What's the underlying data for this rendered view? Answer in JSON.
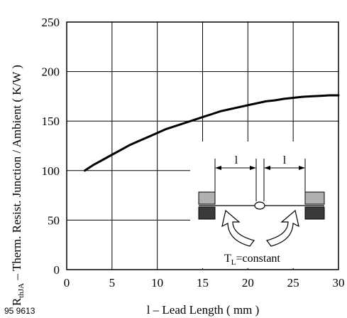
{
  "figure_id": "95 9613",
  "chart_data": {
    "type": "line",
    "title": "",
    "xlabel": "l – Lead Length ( mm )",
    "ylabel_main": "R",
    "ylabel_sub": "thJA",
    "ylabel_rest": " – Therm. Resist. Junction / Ambient ( K/W )",
    "xlim": [
      0,
      30
    ],
    "ylim": [
      0,
      250
    ],
    "x_ticks": [
      "0",
      "5",
      "10",
      "15",
      "20",
      "25",
      "30"
    ],
    "y_ticks": [
      "0",
      "50",
      "100",
      "150",
      "200",
      "250"
    ],
    "grid": true,
    "legend": "none",
    "series": [
      {
        "x": [
          2,
          3,
          4,
          5,
          6,
          7,
          8,
          9,
          10,
          11,
          12,
          13,
          14,
          15,
          16,
          17,
          18,
          19,
          20,
          21,
          22,
          23,
          24,
          25,
          26,
          27,
          28,
          29,
          30
        ],
        "y": [
          100,
          106,
          111,
          116,
          121,
          126,
          130,
          134,
          138,
          142,
          145,
          148,
          151,
          154,
          157,
          160,
          162,
          164,
          166,
          168,
          170,
          171,
          172.5,
          173.5,
          174.5,
          175,
          175.5,
          176,
          176
        ]
      }
    ],
    "inset": {
      "dimension_label_left": "l",
      "dimension_label_right": "l",
      "caption_main": "T",
      "caption_sub": "L",
      "caption_rest": "=constant"
    }
  }
}
